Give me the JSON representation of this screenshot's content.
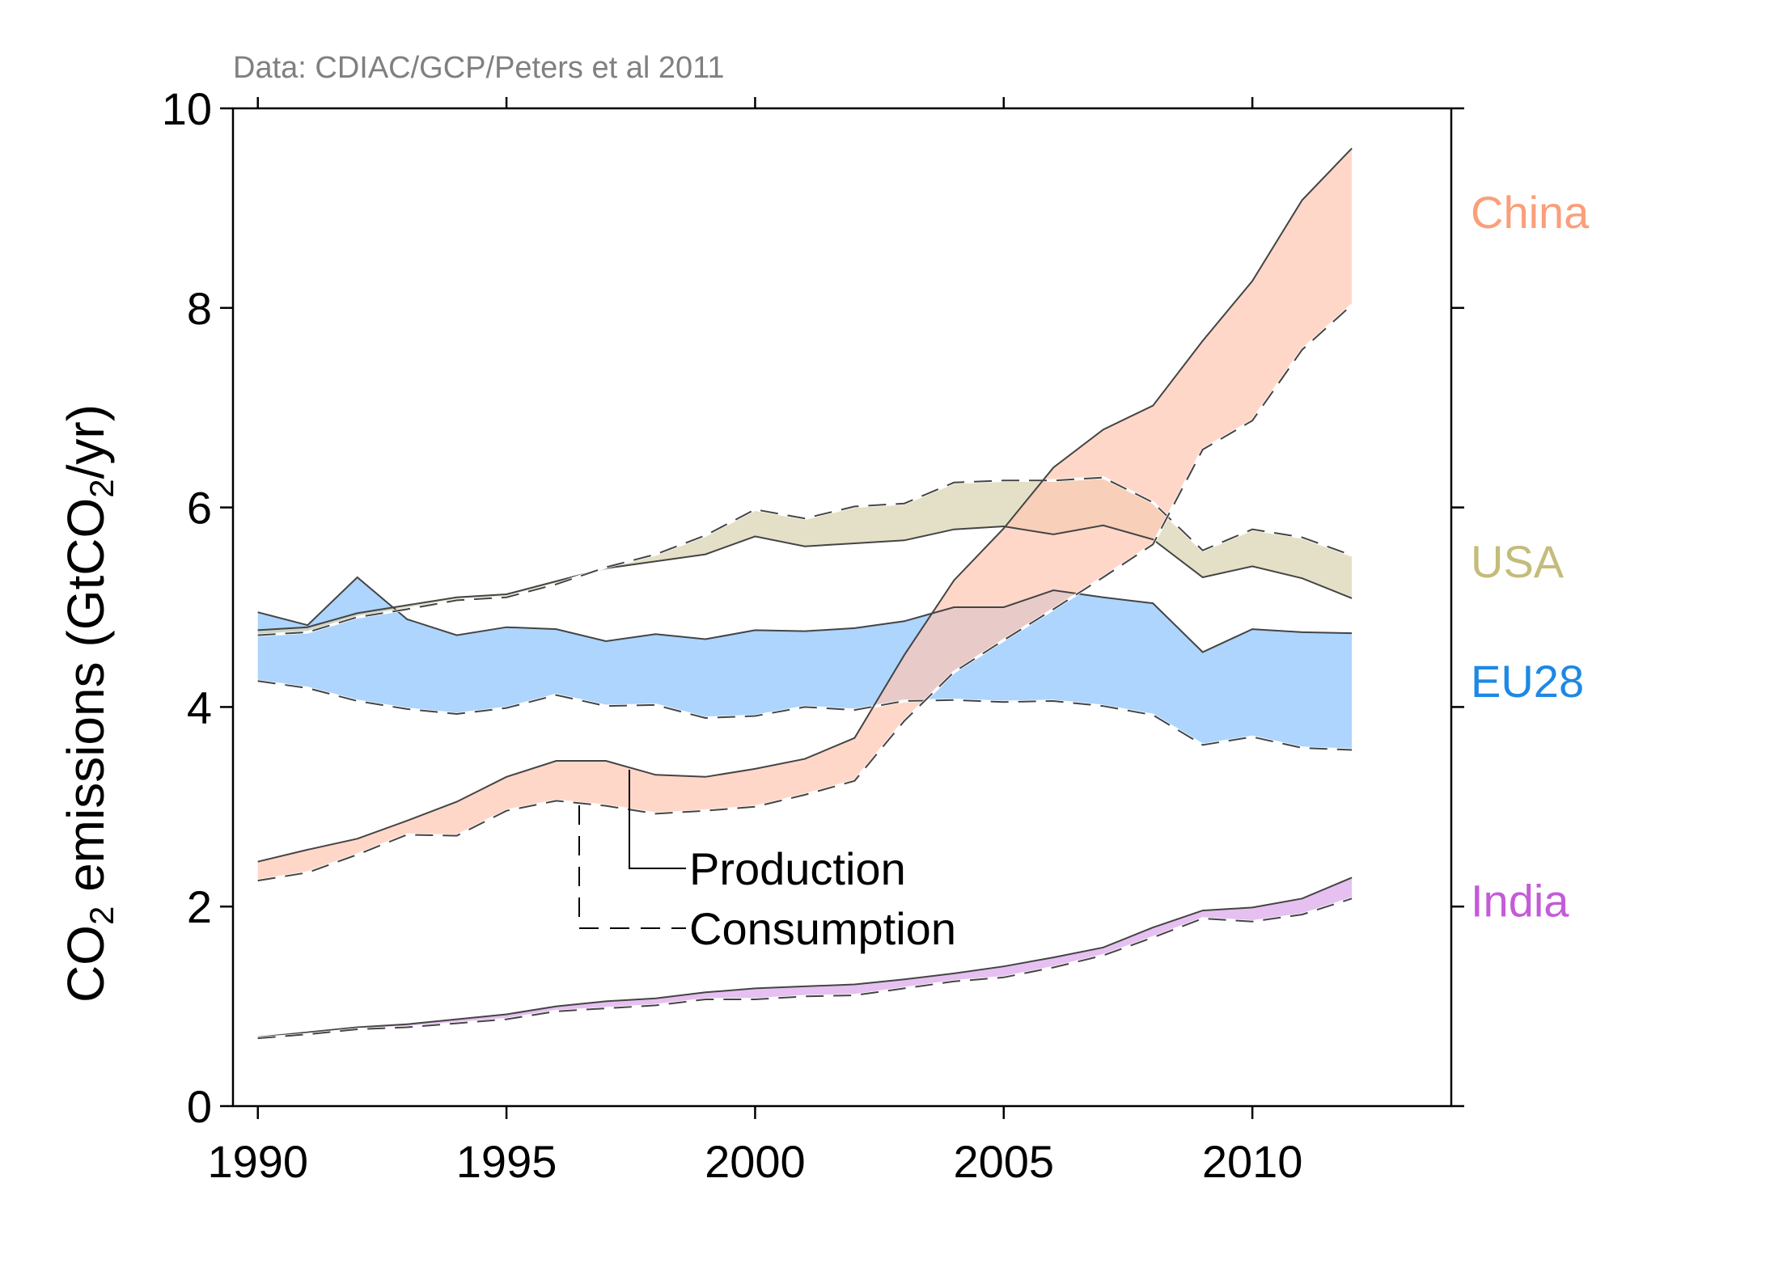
{
  "chart_data": {
    "type": "area",
    "source_note": "Data: CDIAC/GCP/Peters et al 2011",
    "ylabel": {
      "pre": "CO",
      "sub1": "2",
      "mid": " emissions (GtCO",
      "sub2": "2",
      "post": "/yr)"
    },
    "xlim": [
      1989.5,
      2014
    ],
    "ylim": [
      0,
      10
    ],
    "xticks": [
      1990,
      1995,
      2000,
      2005,
      2010
    ],
    "yticks": [
      0,
      2,
      4,
      6,
      8,
      10
    ],
    "x": [
      1990,
      1991,
      1992,
      1993,
      1994,
      1995,
      1996,
      1997,
      1998,
      1999,
      2000,
      2001,
      2002,
      2003,
      2004,
      2005,
      2006,
      2007,
      2008,
      2009,
      2010,
      2011,
      2012
    ],
    "series": [
      {
        "name": "EU28",
        "color": "#1e88e5",
        "fill": "#8ec5fc",
        "production": [
          4.95,
          4.82,
          5.3,
          4.88,
          4.72,
          4.8,
          4.78,
          4.66,
          4.73,
          4.68,
          4.77,
          4.76,
          4.79,
          4.86,
          5.0,
          5.0,
          5.17,
          5.1,
          5.04,
          4.55,
          4.78,
          4.75,
          4.74
        ],
        "consumption": [
          4.26,
          4.19,
          4.06,
          3.98,
          3.93,
          3.99,
          4.12,
          4.01,
          4.02,
          3.89,
          3.91,
          4.0,
          3.97,
          4.06,
          4.07,
          4.05,
          4.06,
          4.01,
          3.92,
          3.62,
          3.7,
          3.59,
          3.57
        ]
      },
      {
        "name": "USA",
        "color": "#c4bc7a",
        "fill": "#d9d4b1",
        "production": [
          4.77,
          4.8,
          4.94,
          5.02,
          5.1,
          5.13,
          5.26,
          5.39,
          5.46,
          5.53,
          5.71,
          5.61,
          5.64,
          5.67,
          5.78,
          5.81,
          5.73,
          5.82,
          5.68,
          5.3,
          5.41,
          5.29,
          5.09
        ],
        "consumption": [
          4.72,
          4.75,
          4.9,
          4.98,
          5.07,
          5.1,
          5.23,
          5.4,
          5.53,
          5.72,
          5.98,
          5.89,
          6.01,
          6.04,
          6.25,
          6.27,
          6.27,
          6.3,
          6.05,
          5.57,
          5.78,
          5.7,
          5.52
        ]
      },
      {
        "name": "China",
        "color": "#fa9f7a",
        "fill": "#ffc8b4",
        "production": [
          2.45,
          2.57,
          2.68,
          2.86,
          3.05,
          3.3,
          3.46,
          3.46,
          3.32,
          3.3,
          3.38,
          3.48,
          3.69,
          4.52,
          5.27,
          5.79,
          6.4,
          6.78,
          7.02,
          7.67,
          8.27,
          9.08,
          9.6
        ],
        "consumption": [
          2.26,
          2.34,
          2.52,
          2.72,
          2.71,
          2.96,
          3.06,
          3.01,
          2.93,
          2.96,
          3.0,
          3.12,
          3.26,
          3.86,
          4.35,
          4.67,
          4.98,
          5.3,
          5.63,
          6.58,
          6.87,
          7.58,
          8.03
        ]
      },
      {
        "name": "India",
        "color": "#c45bd8",
        "fill": "#dca8ea",
        "production": [
          0.69,
          0.74,
          0.79,
          0.82,
          0.87,
          0.92,
          1.0,
          1.05,
          1.08,
          1.14,
          1.18,
          1.2,
          1.22,
          1.27,
          1.33,
          1.4,
          1.49,
          1.59,
          1.79,
          1.96,
          1.99,
          2.08,
          2.29
        ],
        "consumption": [
          0.68,
          0.72,
          0.77,
          0.79,
          0.83,
          0.87,
          0.95,
          0.98,
          1.01,
          1.07,
          1.07,
          1.1,
          1.11,
          1.18,
          1.25,
          1.29,
          1.39,
          1.51,
          1.69,
          1.88,
          1.85,
          1.92,
          2.08
        ]
      }
    ],
    "legend": [
      {
        "label": "Production",
        "style": "solid"
      },
      {
        "label": "Consumption",
        "style": "dashed"
      }
    ],
    "grid": false
  }
}
